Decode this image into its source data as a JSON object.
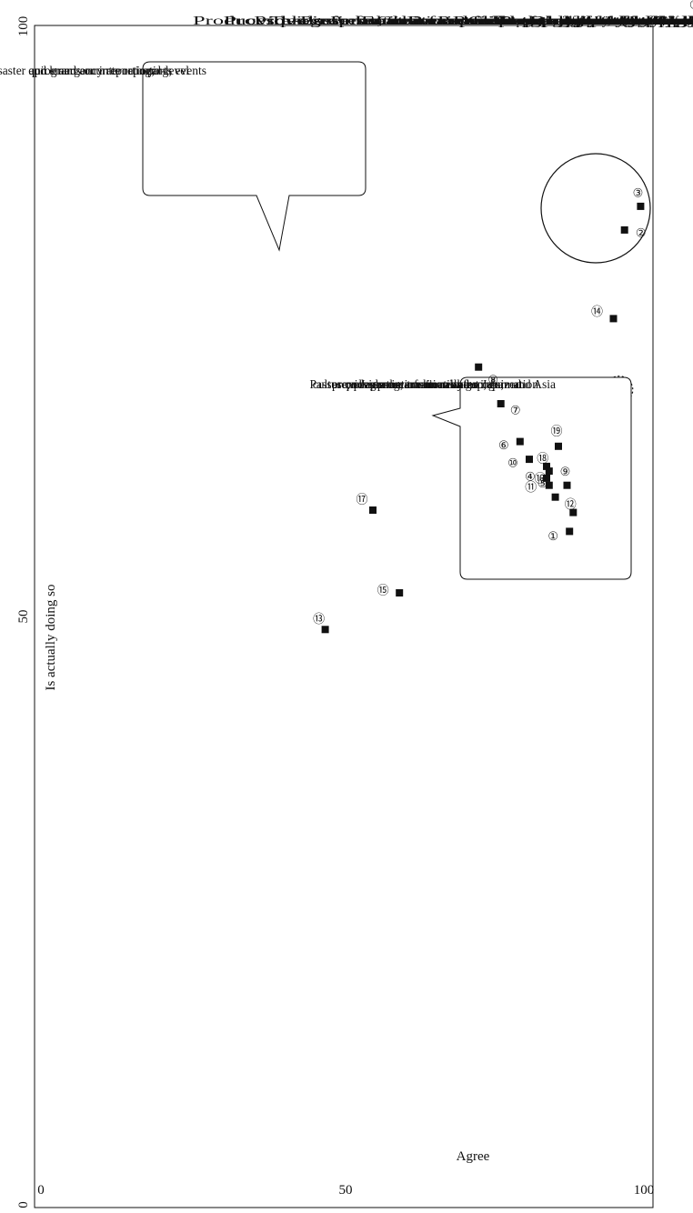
{
  "chart_data": {
    "type": "scatter",
    "title": "",
    "xlabel": "Agree",
    "ylabel": "Is actually doing so",
    "xlim": [
      0,
      100
    ],
    "ylim": [
      0,
      100
    ],
    "x_ticks": [
      "0",
      "50",
      "100"
    ],
    "y_ticks": [
      "0",
      "50",
      "100"
    ],
    "grid": false,
    "points": [
      {
        "id": 1,
        "label": "①",
        "x": 86.5,
        "y": 57.2
      },
      {
        "id": 2,
        "label": "②",
        "x": 95.4,
        "y": 82.7
      },
      {
        "id": 3,
        "label": "③",
        "x": 98.0,
        "y": 84.7
      },
      {
        "id": 4,
        "label": "④",
        "x": 82.8,
        "y": 61.7
      },
      {
        "id": 5,
        "label": "⑤",
        "x": 84.2,
        "y": 60.1
      },
      {
        "id": 6,
        "label": "⑥",
        "x": 78.5,
        "y": 64.8
      },
      {
        "id": 7,
        "label": "⑦",
        "x": 75.4,
        "y": 68.0
      },
      {
        "id": 8,
        "label": "⑧",
        "x": 71.8,
        "y": 71.1
      },
      {
        "id": 9,
        "label": "⑨",
        "x": 86.1,
        "y": 61.1
      },
      {
        "id": 10,
        "label": "⑩",
        "x": 80.0,
        "y": 63.3
      },
      {
        "id": 11,
        "label": "⑪",
        "x": 83.2,
        "y": 61.1
      },
      {
        "id": 12,
        "label": "⑫",
        "x": 87.1,
        "y": 58.8
      },
      {
        "id": 13,
        "label": "⑬",
        "x": 47.0,
        "y": 48.9
      },
      {
        "id": 14,
        "label": "⑭",
        "x": 93.6,
        "y": 75.2
      },
      {
        "id": 15,
        "label": "⑮",
        "x": 59.0,
        "y": 52.0
      },
      {
        "id": 16,
        "label": "⑯",
        "x": 82.8,
        "y": 62.7
      },
      {
        "id": 17,
        "label": "⑰",
        "x": 54.7,
        "y": 59.0
      },
      {
        "id": 18,
        "label": "⑱",
        "x": 83.2,
        "y": 62.3
      },
      {
        "id": 19,
        "label": "⑲",
        "x": 84.7,
        "y": 64.4
      }
    ],
    "annotations": [
      {
        "name": "disaster-callout",
        "text": "Disaster and emergency reporting; quick and accurate reporting; programs on international-level sports events"
      },
      {
        "name": "tradition-callout",
        "text": "Passes on Japanese tradition and culture; closes the information gap; provides programs in new formats; provides internationally-recognized programs; communicates information about Japan and Asia"
      }
    ]
  },
  "legend_items": [
    {
      "num": "①",
      "lines": [
        "Produces programs that are not influenced by advertisers",
        "or sponsors"
      ]
    },
    {
      "num": "②",
      "lines": [
        "Provides information on politics, the economy, public",
        "security, etc. quickly and accurately"
      ]
    },
    {
      "num": "③",
      "lines": [
        "Provides information on disasters quickly and accurately"
      ]
    },
    {
      "num": "④",
      "lines": [
        "Takes up broad issues from throughout Japanese society",
        "and provides information that citizens can share and discuss"
      ]
    },
    {
      "num": "⑤",
      "lines": [
        "Presents, in a fair and neutral manner, diverse opinions",
        "on political or other issues on which views diverge"
      ]
    },
    {
      "num": "⑥",
      "lines": [
        "Presents various modes of society and values, helping the public",
        "be more tolerant and feel a sense of solidarity with others"
      ]
    },
    {
      "num": "⑦",
      "lines": [
        "Endeavors to close the information gap among citizens"
      ]
    },
    {
      "num": "⑧",
      "lines": [
        "Creates new program formats that go beyond existing",
        "program frameworks"
      ]
    },
    {
      "num": "⑨",
      "lines": [
        "Broadcasts programs that have been painstakingly",
        "researched and produced"
      ]
    },
    {
      "num": "⑩",
      "lines": [
        "Provides programs that are well-received internationally"
      ]
    },
    {
      "num": "⑪",
      "lines": [
        "Provides people of all ages with opportunities to learn"
      ]
    },
    {
      "num": "⑫",
      "lines": [
        "Creates programs of high cultural and artistic value that",
        "contribute to the advancement of Japan's artistic culture"
      ]
    },
    {
      "num": "⑬",
      "lines": [
        "Provides programs in popular entertainment genres,",
        "such as variety or animation"
      ]
    },
    {
      "num": "⑭",
      "lines": [
        "Broadcasts sports programs on events such as the",
        "Olympics that attract strong worldwide interest"
      ]
    },
    {
      "num": "⑮",
      "lines": [
        "Actively covers and broadcasts non-mainstream sports"
      ]
    },
    {
      "num": "⑯",
      "lines": [
        "Actively communicates events in Japan, Japanese history",
        "and culture, and information about Asia to the world"
      ]
    },
    {
      "num": "⑰",
      "lines": [
        "Is actively involved in developing new types of services",
        "(for example, providing programs over the Internet) that",
        "combine broadcasting and telecommunications"
      ]
    },
    {
      "num": "⑱",
      "lines": [
        "Collects and maintains visual archives that are a",
        "precious legacy from the past, to preserve them for",
        "future generations and put them at the public's disposal"
      ]
    },
    {
      "num": "⑲",
      "lines": [
        "Passes on Japanese traditions and culture to the",
        "younger generation in audio and video format"
      ]
    }
  ]
}
